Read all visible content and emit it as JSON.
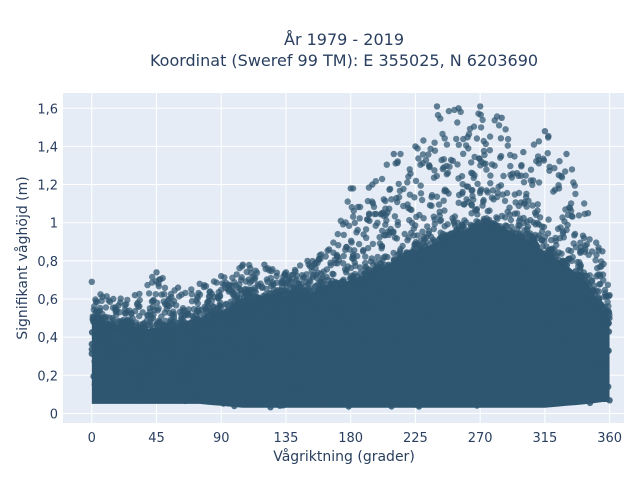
{
  "chart_data": {
    "type": "scatter",
    "title_line1": "År 1979 - 2019",
    "title_line2": "Koordinat (Sweref 99 TM): E 355025, N 6203690",
    "xlabel": "Vågriktning (grader)",
    "ylabel": "Signifikant våghöjd (m)",
    "xlim": [
      -20,
      370
    ],
    "ylim": [
      -0.05,
      1.68
    ],
    "xticks": [
      0,
      45,
      90,
      135,
      180,
      225,
      270,
      315,
      360
    ],
    "xtick_labels": [
      "0",
      "45",
      "90",
      "135",
      "180",
      "225",
      "270",
      "315",
      "360"
    ],
    "yticks": [
      0,
      0.2,
      0.4,
      0.6,
      0.8,
      1.0,
      1.2,
      1.4,
      1.6
    ],
    "ytick_labels": [
      "0",
      "0,2",
      "0,4",
      "0,6",
      "0,8",
      "1",
      "1,2",
      "1,4",
      "1,6"
    ],
    "grid": true,
    "marker_color": "#2f5670",
    "plot_bg": "#e5ecf6",
    "envelope": {
      "x": [
        0,
        15,
        30,
        45,
        60,
        75,
        90,
        105,
        120,
        135,
        150,
        165,
        180,
        195,
        210,
        225,
        240,
        255,
        270,
        285,
        300,
        315,
        330,
        345,
        355,
        360
      ],
      "y_min": [
        0.05,
        0.05,
        0.05,
        0.05,
        0.05,
        0.05,
        0.04,
        0.03,
        0.03,
        0.03,
        0.03,
        0.03,
        0.03,
        0.03,
        0.03,
        0.03,
        0.03,
        0.03,
        0.03,
        0.03,
        0.03,
        0.03,
        0.04,
        0.05,
        0.06,
        0.06
      ],
      "y_dense_max": [
        0.5,
        0.45,
        0.43,
        0.45,
        0.46,
        0.48,
        0.52,
        0.58,
        0.6,
        0.62,
        0.63,
        0.66,
        0.7,
        0.74,
        0.8,
        0.85,
        0.9,
        0.95,
        1.0,
        0.98,
        0.92,
        0.85,
        0.78,
        0.68,
        0.55,
        0.5
      ],
      "y_max": [
        0.69,
        0.6,
        0.62,
        0.74,
        0.66,
        0.68,
        0.72,
        0.78,
        0.78,
        0.74,
        0.8,
        0.86,
        1.18,
        1.2,
        1.36,
        1.4,
        1.61,
        1.6,
        1.61,
        1.55,
        1.37,
        1.48,
        1.36,
        1.05,
        0.85,
        0.62
      ]
    }
  }
}
